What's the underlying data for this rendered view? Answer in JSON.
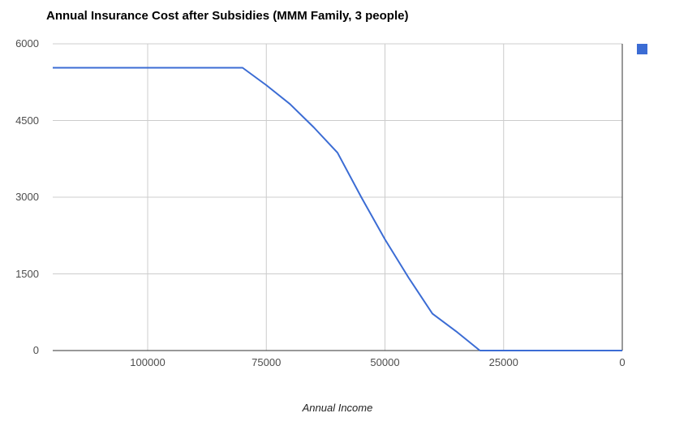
{
  "chart_data": {
    "type": "line",
    "title": "Annual Insurance Cost after Subsidies (MMM Family, 3 people)",
    "xlabel": "Annual Income",
    "ylabel": "",
    "series": [
      {
        "name": "Annual Insurance Cost after Subsidies",
        "x": [
          120000,
          80000,
          75000,
          70000,
          65000,
          60000,
          55000,
          50000,
          45000,
          40000,
          35000,
          30000,
          0
        ],
        "values": [
          5532,
          5532,
          5190,
          4820,
          4365,
          3870,
          3000,
          2175,
          1420,
          720,
          375,
          0,
          0
        ]
      }
    ],
    "x_axis": {
      "min": 0,
      "max": 120000,
      "reversed": true,
      "ticks": [
        100000,
        75000,
        50000,
        25000,
        0
      ]
    },
    "y_axis": {
      "min": 0,
      "max": 6000,
      "ticks": [
        0,
        1500,
        3000,
        4500,
        6000
      ]
    },
    "grid": true,
    "legend_position": "top-right",
    "colors": {
      "series": "#3b6cd4",
      "gridline": "#cccccc",
      "baseline": "#333333",
      "tick_text": "#4d4d4d",
      "title_text": "#000000",
      "axis_title_text": "#222222"
    }
  }
}
